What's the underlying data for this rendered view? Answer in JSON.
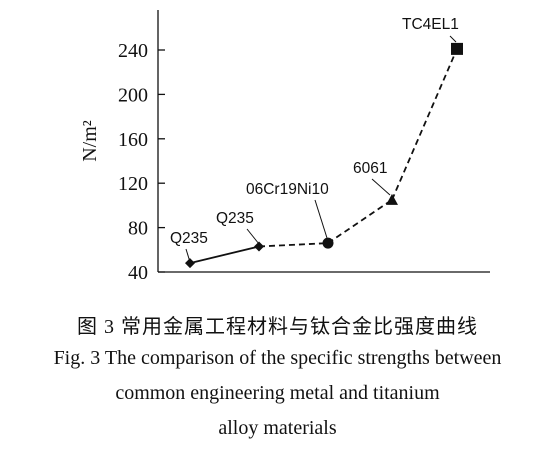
{
  "chart_data": {
    "type": "line",
    "ylabel": "N/m²",
    "xlabel": "",
    "ylim": [
      40,
      260
    ],
    "yticks": [
      40,
      80,
      120,
      160,
      200,
      240
    ],
    "grid": false,
    "points": [
      {
        "label": "Q235",
        "value": 48,
        "marker": "diamond"
      },
      {
        "label": "Q235",
        "value": 63,
        "marker": "diamond"
      },
      {
        "label": "06Cr19Ni10",
        "value": 66,
        "marker": "circle"
      },
      {
        "label": "6061",
        "value": 105,
        "marker": "triangle"
      },
      {
        "label": "TC4EL1",
        "value": 241,
        "marker": "square"
      }
    ],
    "segments": [
      {
        "from": 0,
        "to": 1,
        "style": "solid"
      },
      {
        "from": 1,
        "to": 2,
        "style": "dashed"
      },
      {
        "from": 2,
        "to": 3,
        "style": "dashed"
      },
      {
        "from": 3,
        "to": 4,
        "style": "dashed"
      }
    ]
  },
  "caption": {
    "chinese": "图 3  常用金属工程材料与钛合金比强度曲线",
    "english_line1": "Fig. 3  The comparison of the specific strengths between",
    "english_line2": "common engineering metal and titanium",
    "english_line3": "alloy materials"
  }
}
